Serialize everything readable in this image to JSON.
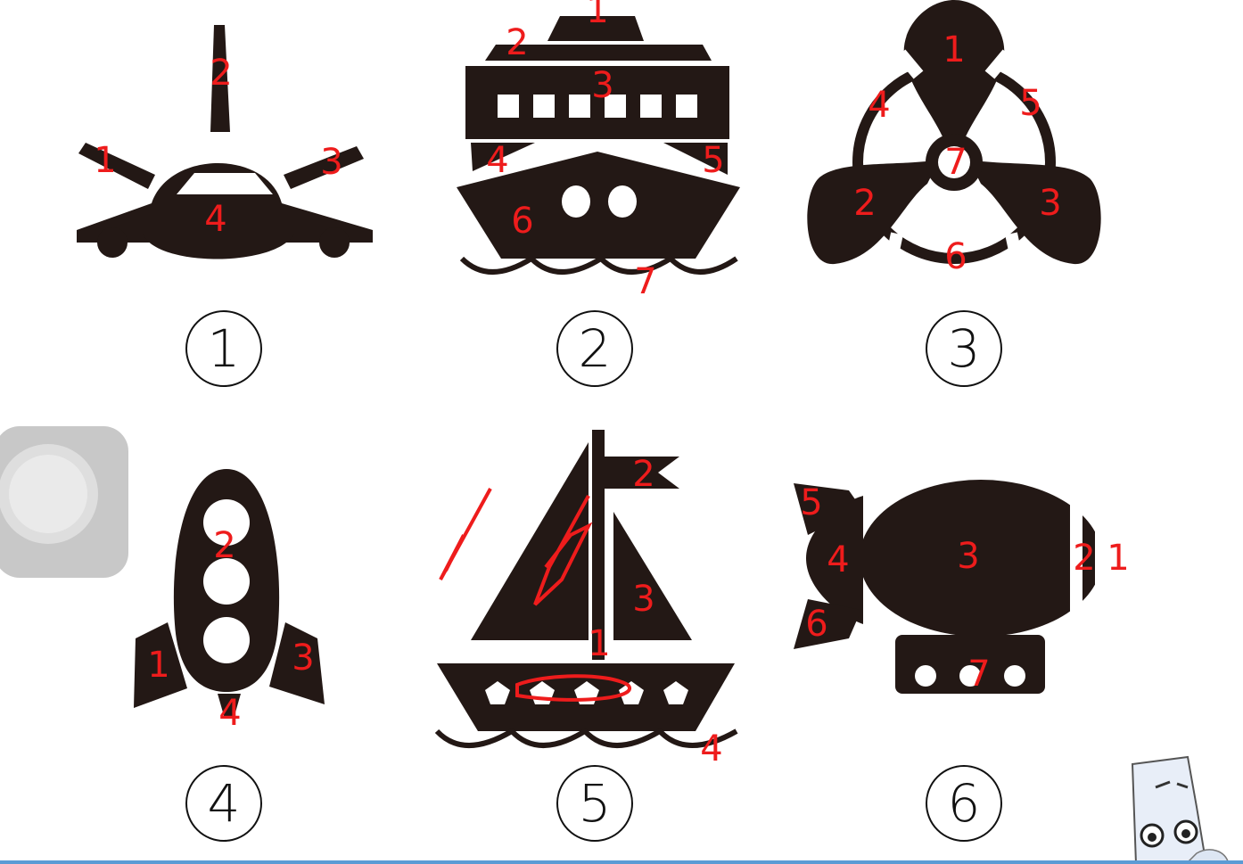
{
  "figures": [
    {
      "index": "1",
      "name": "airplane",
      "labels": [
        "1",
        "2",
        "3",
        "4"
      ]
    },
    {
      "index": "2",
      "name": "ship",
      "labels": [
        "1",
        "2",
        "3",
        "4",
        "5",
        "6",
        "7"
      ]
    },
    {
      "index": "3",
      "name": "propeller",
      "labels": [
        "1",
        "2",
        "3",
        "4",
        "5",
        "6",
        "7"
      ]
    },
    {
      "index": "4",
      "name": "rocket",
      "labels": [
        "1",
        "2",
        "3",
        "4"
      ]
    },
    {
      "index": "5",
      "name": "sailboat",
      "labels": [
        "1",
        "2",
        "3",
        "4"
      ]
    },
    {
      "index": "6",
      "name": "airship",
      "labels": [
        "1",
        "2",
        "3",
        "4",
        "5",
        "6",
        "7"
      ]
    }
  ],
  "circled_numbers": [
    "1",
    "2",
    "3",
    "4",
    "5",
    "6"
  ],
  "colors": {
    "shape": "#231815",
    "annotation": "#ee1c1c",
    "accent_line": "#5b9bd5"
  },
  "icons": [
    "assistive-touch-icon",
    "mascot-icon"
  ]
}
